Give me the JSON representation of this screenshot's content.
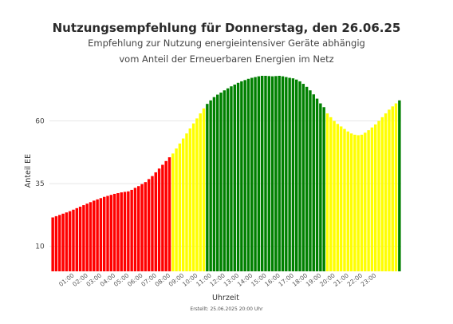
{
  "chart_data": {
    "type": "bar",
    "title": "Nutzungsempfehlung für Donnerstag, den 26.06.25",
    "subtitle_line1": "Empfehlung zur Nutzung energieintensiver Geräte abhängig",
    "subtitle_line2": "vom Anteil der Erneuerbaren Energien im Netz",
    "xlabel": "Uhrzeit",
    "ylabel": "Anteil EE",
    "yticks": [
      10,
      35,
      60
    ],
    "ylim": [
      0,
      78
    ],
    "x_tick_labels": [
      "01:00",
      "02:00",
      "03:00",
      "04:00",
      "05:00",
      "06:00",
      "07:00",
      "08:00",
      "09:00",
      "10:00",
      "11:00",
      "12:00",
      "13:00",
      "14:00",
      "15:00",
      "16:00",
      "17:00",
      "18:00",
      "19:00",
      "20:00",
      "21:00",
      "22:00",
      "23:00"
    ],
    "colors": {
      "red": "#ff0000",
      "yellow": "#ffff00",
      "green": "#008000"
    },
    "thresholds_note": "",
    "values": [
      21.5,
      22.0,
      22.5,
      23.0,
      23.5,
      24.0,
      24.6,
      25.2,
      25.8,
      26.4,
      27.0,
      27.6,
      28.2,
      28.7,
      29.2,
      29.7,
      30.1,
      30.5,
      30.9,
      31.2,
      31.5,
      31.7,
      31.9,
      32.5,
      33.3,
      34.0,
      34.8,
      35.6,
      36.8,
      38.0,
      39.5,
      41.0,
      42.5,
      44.0,
      45.5,
      47.0,
      49.0,
      51.0,
      53.0,
      55.0,
      57.0,
      59.0,
      61.0,
      63.0,
      65.0,
      66.8,
      68.2,
      69.5,
      70.5,
      71.3,
      72.2,
      73.0,
      73.8,
      74.5,
      75.2,
      75.8,
      76.3,
      76.8,
      77.2,
      77.5,
      77.8,
      78.0,
      78.0,
      77.9,
      77.8,
      77.9,
      78.0,
      77.8,
      77.5,
      77.2,
      77.0,
      76.5,
      75.8,
      74.8,
      73.6,
      72.2,
      70.6,
      68.9,
      67.0,
      65.5,
      63.0,
      61.5,
      60.0,
      58.8,
      57.8,
      56.8,
      55.8,
      55.0,
      54.5,
      54.3,
      54.5,
      55.3,
      56.3,
      57.4,
      58.6,
      60.0,
      61.5,
      63.0,
      64.5,
      65.8,
      67.0,
      68.2
    ],
    "colors_per_bar_counts": {
      "red": 35,
      "yellow_1": 10,
      "green": 35,
      "yellow_2": 21,
      "green_last": 1
    }
  },
  "footer": "Erstellt: 25.06.2025 20:00 Uhr"
}
